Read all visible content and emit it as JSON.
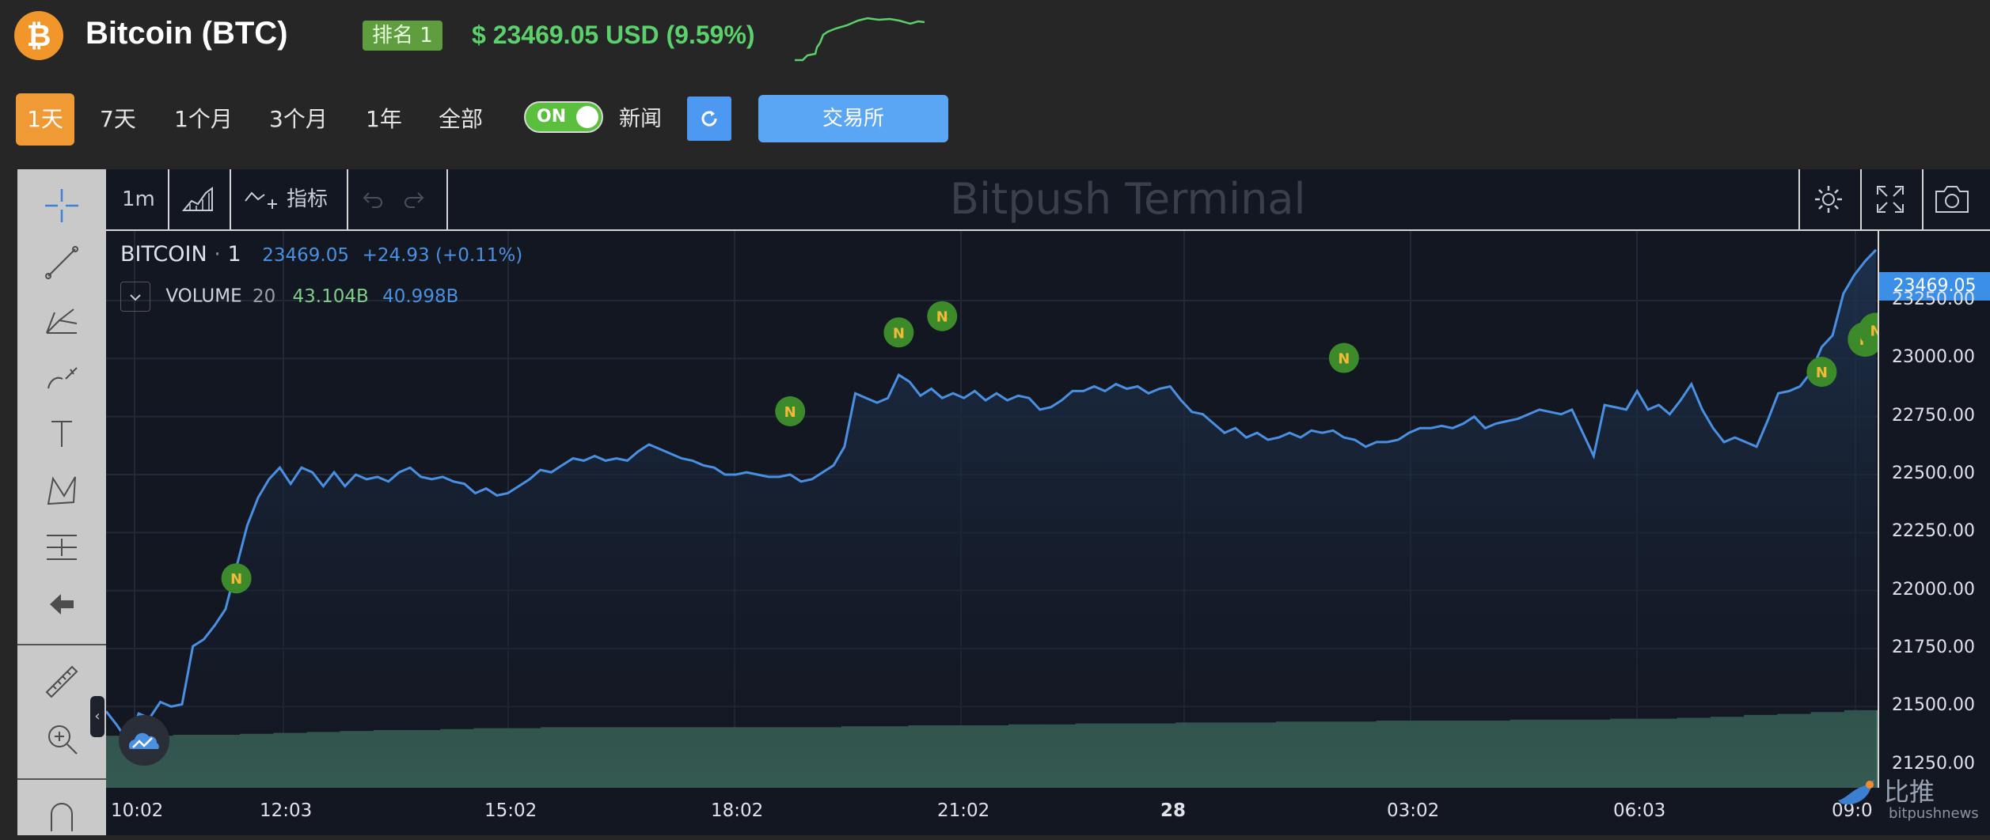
{
  "header": {
    "coin_symbol_icon": "bitcoin-icon",
    "title": "Bitcoin (BTC)",
    "rank": "排名 1",
    "price": "$ 23469.05 USD (9.59%)"
  },
  "periods": [
    {
      "label": "1天",
      "active": true
    },
    {
      "label": "7天",
      "active": false
    },
    {
      "label": "1个月",
      "active": false
    },
    {
      "label": "3个月",
      "active": false
    },
    {
      "label": "1年",
      "active": false
    },
    {
      "label": "全部",
      "active": false
    }
  ],
  "news_toggle": {
    "state_label": "ON",
    "label": "新闻"
  },
  "exchange_button": "交易所",
  "toolbar": {
    "interval": "1m",
    "indicators": "指标",
    "watermark": "Bitpush Terminal"
  },
  "legend": {
    "symbol": "BITCOIN",
    "interval": "1",
    "last": "23469.05",
    "change": "+24.93 (+0.11%)",
    "volume_label": "VOLUME",
    "volume_len": "20",
    "vol_a": "43.104B",
    "vol_b": "40.998B"
  },
  "price_tag": "23469.05",
  "footer_logo": {
    "text": "比推",
    "sub": "bitpushnews"
  },
  "colors": {
    "line": "#4a90e2",
    "volume": "#3d6b5d",
    "news_marker": "#3d8a2a",
    "accent": "#ef9a35"
  },
  "chart_data": {
    "type": "line",
    "ylim": [
      21150,
      23550
    ],
    "yticks": [
      "23250.00",
      "23000.00",
      "22750.00",
      "22500.00",
      "22250.00",
      "22000.00",
      "21750.00",
      "21500.00",
      "21250.00"
    ],
    "xticks": [
      "10:02",
      "12:03",
      "15:02",
      "18:02",
      "21:02",
      "28",
      "03:02",
      "06:03",
      "09:0"
    ],
    "series": [
      {
        "values": [
          21480,
          21420,
          21350,
          21470,
          21450,
          21520,
          21500,
          21510,
          21760,
          21790,
          21850,
          21920,
          22100,
          22280,
          22400,
          22480,
          22530,
          22460,
          22530,
          22510,
          22450,
          22510,
          22450,
          22500,
          22480,
          22490,
          22470,
          22510,
          22530,
          22490,
          22480,
          22490,
          22470,
          22460,
          22420,
          22440,
          22410,
          22420,
          22450,
          22480,
          22520,
          22510,
          22540,
          22570,
          22560,
          22580,
          22560,
          22570,
          22560,
          22600,
          22630,
          22610,
          22590,
          22570,
          22560,
          22540,
          22530,
          22500,
          22500,
          22510,
          22500,
          22490,
          22490,
          22500,
          22470,
          22480,
          22510,
          22540,
          22620,
          22850,
          22830,
          22810,
          22830,
          22930,
          22900,
          22840,
          22870,
          22830,
          22850,
          22830,
          22860,
          22820,
          22850,
          22820,
          22840,
          22830,
          22780,
          22790,
          22820,
          22860,
          22860,
          22880,
          22860,
          22890,
          22870,
          22880,
          22850,
          22870,
          22880,
          22820,
          22770,
          22760,
          22720,
          22680,
          22700,
          22660,
          22680,
          22650,
          22660,
          22680,
          22660,
          22690,
          22680,
          22690,
          22660,
          22650,
          22620,
          22640,
          22640,
          22650,
          22680,
          22700,
          22700,
          22710,
          22700,
          22720,
          22750,
          22700,
          22720,
          22730,
          22740,
          22760,
          22780,
          22770,
          22760,
          22780,
          22680,
          22580,
          22800,
          22790,
          22780,
          22860,
          22780,
          22800,
          22760,
          22820,
          22890,
          22780,
          22700,
          22640,
          22660,
          22640,
          22620,
          22730,
          22850,
          22860,
          22880,
          22940,
          23050,
          23100,
          23280,
          23360,
          23420,
          23469
        ]
      }
    ],
    "volume_values": [
      0.55,
      0.55,
      0.56,
      0.56,
      0.57,
      0.58,
      0.59,
      0.6,
      0.61,
      0.61,
      0.62,
      0.63,
      0.63,
      0.64,
      0.64,
      0.64,
      0.64,
      0.64,
      0.64,
      0.64,
      0.64,
      0.64,
      0.65,
      0.65,
      0.66,
      0.66,
      0.66,
      0.67,
      0.67,
      0.68,
      0.68,
      0.68,
      0.69,
      0.69,
      0.69,
      0.7,
      0.7,
      0.7,
      0.71,
      0.71,
      0.71,
      0.71,
      0.72,
      0.72,
      0.72,
      0.73,
      0.73,
      0.74,
      0.75,
      0.77,
      0.78,
      0.8,
      0.82
    ],
    "news_markers": [
      {
        "i": 12,
        "v": 21930
      },
      {
        "i": 63,
        "v": 22650
      },
      {
        "i": 73,
        "v": 22990
      },
      {
        "i": 77,
        "v": 23060
      },
      {
        "i": 114,
        "v": 22880
      },
      {
        "i": 158,
        "v": 22820
      },
      {
        "i": 162,
        "v": 22960
      },
      {
        "i": 163,
        "v": 23000
      },
      {
        "i": 166,
        "v": 23280
      }
    ]
  }
}
